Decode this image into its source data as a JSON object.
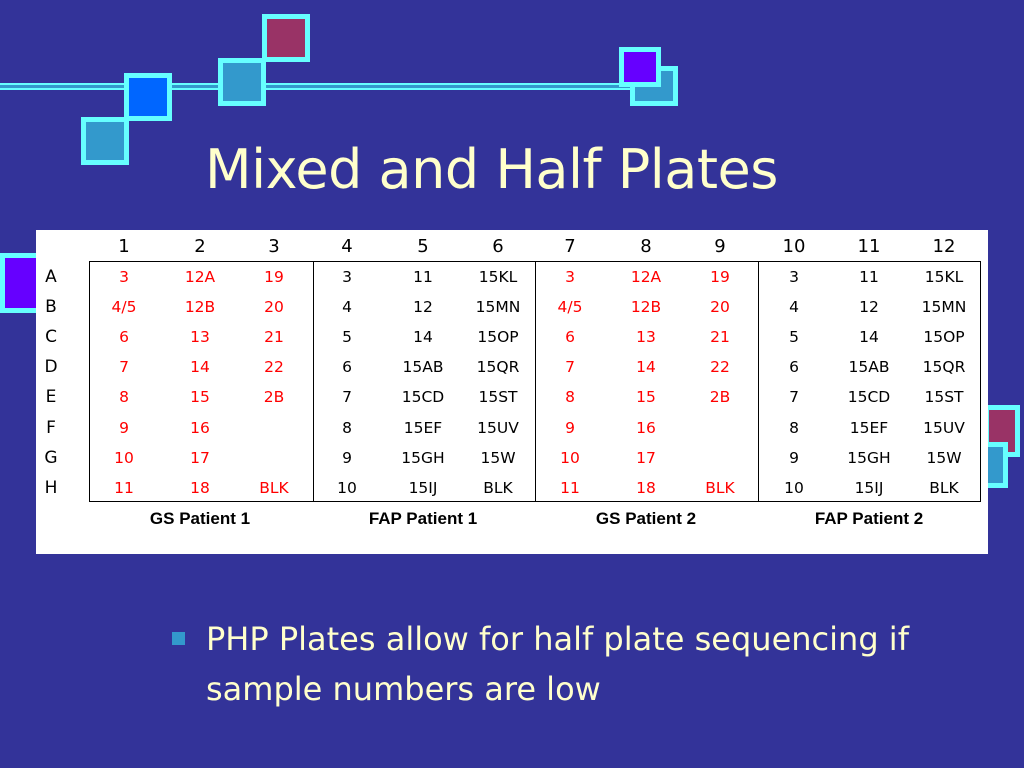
{
  "title": "Mixed and Half Plates",
  "colors": {
    "background": "#333399",
    "title": "#ffffcc",
    "accent": "#66ffff",
    "red_text": "#ff0000"
  },
  "plate": {
    "columns": [
      "1",
      "2",
      "3",
      "4",
      "5",
      "6",
      "7",
      "8",
      "9",
      "10",
      "11",
      "12"
    ],
    "rows": [
      "A",
      "B",
      "C",
      "D",
      "E",
      "F",
      "G",
      "H"
    ],
    "cells": [
      [
        "3",
        "12A",
        "19",
        "3",
        "11",
        "15KL",
        "3",
        "12A",
        "19",
        "3",
        "11",
        "15KL"
      ],
      [
        "4/5",
        "12B",
        "20",
        "4",
        "12",
        "15MN",
        "4/5",
        "12B",
        "20",
        "4",
        "12",
        "15MN"
      ],
      [
        "6",
        "13",
        "21",
        "5",
        "14",
        "15OP",
        "6",
        "13",
        "21",
        "5",
        "14",
        "15OP"
      ],
      [
        "7",
        "14",
        "22",
        "6",
        "15AB",
        "15QR",
        "7",
        "14",
        "22",
        "6",
        "15AB",
        "15QR"
      ],
      [
        "8",
        "15",
        "2B",
        "7",
        "15CD",
        "15ST",
        "8",
        "15",
        "2B",
        "7",
        "15CD",
        "15ST"
      ],
      [
        "9",
        "16",
        "",
        "8",
        "15EF",
        "15UV",
        "9",
        "16",
        "",
        "8",
        "15EF",
        "15UV"
      ],
      [
        "10",
        "17",
        "",
        "9",
        "15GH",
        "15W",
        "10",
        "17",
        "",
        "9",
        "15GH",
        "15W"
      ],
      [
        "11",
        "18",
        "BLK",
        "10",
        "15IJ",
        "BLK",
        "11",
        "18",
        "BLK",
        "10",
        "15IJ",
        "BLK"
      ]
    ],
    "red_columns": [
      0,
      1,
      2,
      6,
      7,
      8
    ],
    "groups": [
      "GS Patient 1",
      "FAP Patient 1",
      "GS Patient 2",
      "FAP Patient 2"
    ]
  },
  "bullet": {
    "text": "PHP Plates allow for half plate sequencing if sample numbers are low"
  }
}
